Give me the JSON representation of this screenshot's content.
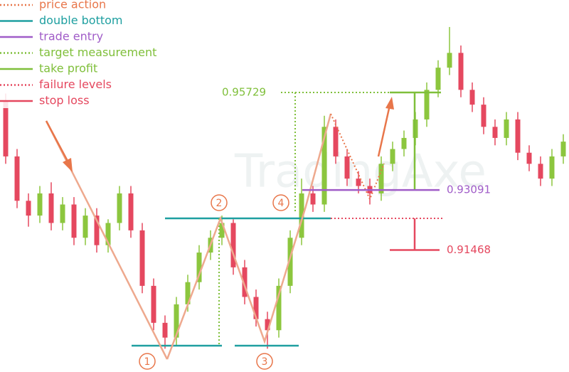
{
  "chart_data": {
    "type": "candlestick",
    "ylim": [
      0.8817,
      0.9823
    ],
    "up_color": "#8cc63e",
    "down_color": "#e5485f",
    "open": [
      0.955,
      0.94,
      0.928,
      0.924,
      0.93,
      0.922,
      0.927,
      0.918,
      0.924,
      0.916,
      0.922,
      0.93,
      0.92,
      0.905,
      0.895,
      0.891,
      0.9,
      0.906,
      0.914,
      0.918,
      0.922,
      0.91,
      0.902,
      0.896,
      0.893,
      0.905,
      0.918,
      0.93,
      0.927,
      0.948,
      0.94,
      0.934,
      0.932,
      0.93,
      0.938,
      0.942,
      0.945,
      0.95,
      0.958,
      0.964,
      0.968,
      0.958,
      0.954,
      0.948,
      0.945,
      0.95,
      0.941,
      0.938,
      0.934,
      0.94
    ],
    "high": [
      0.957,
      0.942,
      0.93,
      0.932,
      0.933,
      0.929,
      0.929,
      0.926,
      0.926,
      0.923,
      0.932,
      0.932,
      0.922,
      0.907,
      0.897,
      0.902,
      0.908,
      0.916,
      0.92,
      0.924,
      0.923,
      0.912,
      0.904,
      0.898,
      0.907,
      0.92,
      0.934,
      0.932,
      0.951,
      0.95,
      0.942,
      0.936,
      0.934,
      0.94,
      0.944,
      0.947,
      0.952,
      0.96,
      0.966,
      0.975,
      0.97,
      0.96,
      0.956,
      0.95,
      0.952,
      0.952,
      0.943,
      0.94,
      0.942,
      0.946
    ],
    "low": [
      0.938,
      0.926,
      0.921,
      0.922,
      0.92,
      0.92,
      0.916,
      0.916,
      0.914,
      0.914,
      0.92,
      0.918,
      0.903,
      0.893,
      0.888,
      0.889,
      0.898,
      0.904,
      0.912,
      0.916,
      0.908,
      0.9,
      0.894,
      0.888,
      0.891,
      0.903,
      0.916,
      0.925,
      0.925,
      0.938,
      0.932,
      0.93,
      0.927,
      0.928,
      0.936,
      0.94,
      0.943,
      0.948,
      0.956,
      0.962,
      0.956,
      0.952,
      0.946,
      0.943,
      0.943,
      0.939,
      0.936,
      0.932,
      0.932,
      0.938
    ],
    "close": [
      0.94,
      0.928,
      0.924,
      0.93,
      0.922,
      0.927,
      0.918,
      0.924,
      0.916,
      0.922,
      0.93,
      0.92,
      0.905,
      0.895,
      0.891,
      0.9,
      0.906,
      0.914,
      0.918,
      0.922,
      0.91,
      0.902,
      0.896,
      0.893,
      0.905,
      0.918,
      0.93,
      0.927,
      0.948,
      0.94,
      0.934,
      0.932,
      0.93,
      0.938,
      0.942,
      0.945,
      0.95,
      0.958,
      0.964,
      0.968,
      0.958,
      0.954,
      0.948,
      0.945,
      0.95,
      0.941,
      0.938,
      0.934,
      0.94,
      0.944
    ],
    "legend": [
      {
        "label": "price action",
        "color": "#e8764a",
        "style": "dotted"
      },
      {
        "label": "double bottom",
        "color": "#1e9fa0",
        "style": "solid"
      },
      {
        "label": "trade entry",
        "color": "#a05cc8",
        "style": "solid"
      },
      {
        "label": "target measurement",
        "color": "#7fbf3a",
        "style": "dotted"
      },
      {
        "label": "take profit",
        "color": "#7fbf3a",
        "style": "solid"
      },
      {
        "label": "failure levels",
        "color": "#e5485f",
        "style": "dotted"
      },
      {
        "label": "stop loss",
        "color": "#e5485f",
        "style": "solid"
      }
    ],
    "price_labels": [
      0.95729,
      0.93091,
      0.91468
    ],
    "price_label_colors": [
      "#7fbf3a",
      "#a05cc8",
      "#e5485f"
    ],
    "markers": [
      "1",
      "2",
      "3",
      "4"
    ],
    "watermark": "TradingAxe"
  }
}
